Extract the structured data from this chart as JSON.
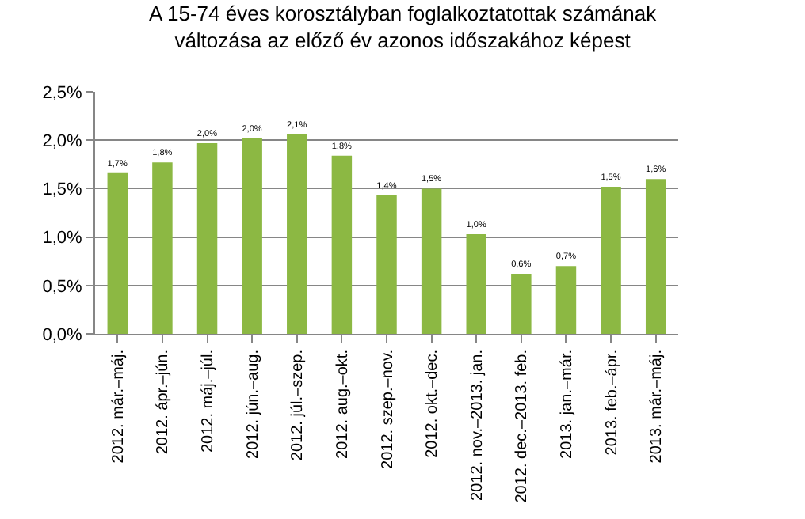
{
  "chart_data": {
    "type": "bar",
    "title": "A 15-74 éves korosztályban foglalkoztatottak számának\nváltozása az előző év azonos időszakához képest",
    "categories": [
      "2012. már.–máj.",
      "2012. ápr.–jún.",
      "2012. máj.–júl.",
      "2012. jún.–aug.",
      "2012. júl.–szep.",
      "2012. aug.–okt.",
      "2012. szep.–nov.",
      "2012. okt.–dec.",
      "2012. nov.–2013. jan.",
      "2012. dec.–2013. feb.",
      "2013. jan.–már.",
      "2013. feb.–ápr.",
      "2013. már.–máj."
    ],
    "values": [
      1.66,
      1.77,
      1.97,
      2.02,
      2.06,
      1.84,
      1.43,
      1.5,
      1.03,
      0.62,
      0.7,
      1.52,
      1.6
    ],
    "value_labels": [
      "1,7%",
      "1,8%",
      "2,0%",
      "2,0%",
      "2,1%",
      "1,8%",
      "1,4%",
      "1,5%",
      "1,0%",
      "0,6%",
      "0,7%",
      "1,5%",
      "1,6%"
    ],
    "color": "#8cb843",
    "ylim": [
      0,
      2.5
    ],
    "yticks": [
      {
        "value": 0,
        "label": "0,0%"
      },
      {
        "value": 0.5,
        "label": "0,5%"
      },
      {
        "value": 1,
        "label": "1,0%"
      },
      {
        "value": 1.5,
        "label": "1,5%"
      },
      {
        "value": 2,
        "label": "2,0%"
      },
      {
        "value": 2.5,
        "label": "2,5%"
      }
    ],
    "grid": "y",
    "legend": false
  }
}
